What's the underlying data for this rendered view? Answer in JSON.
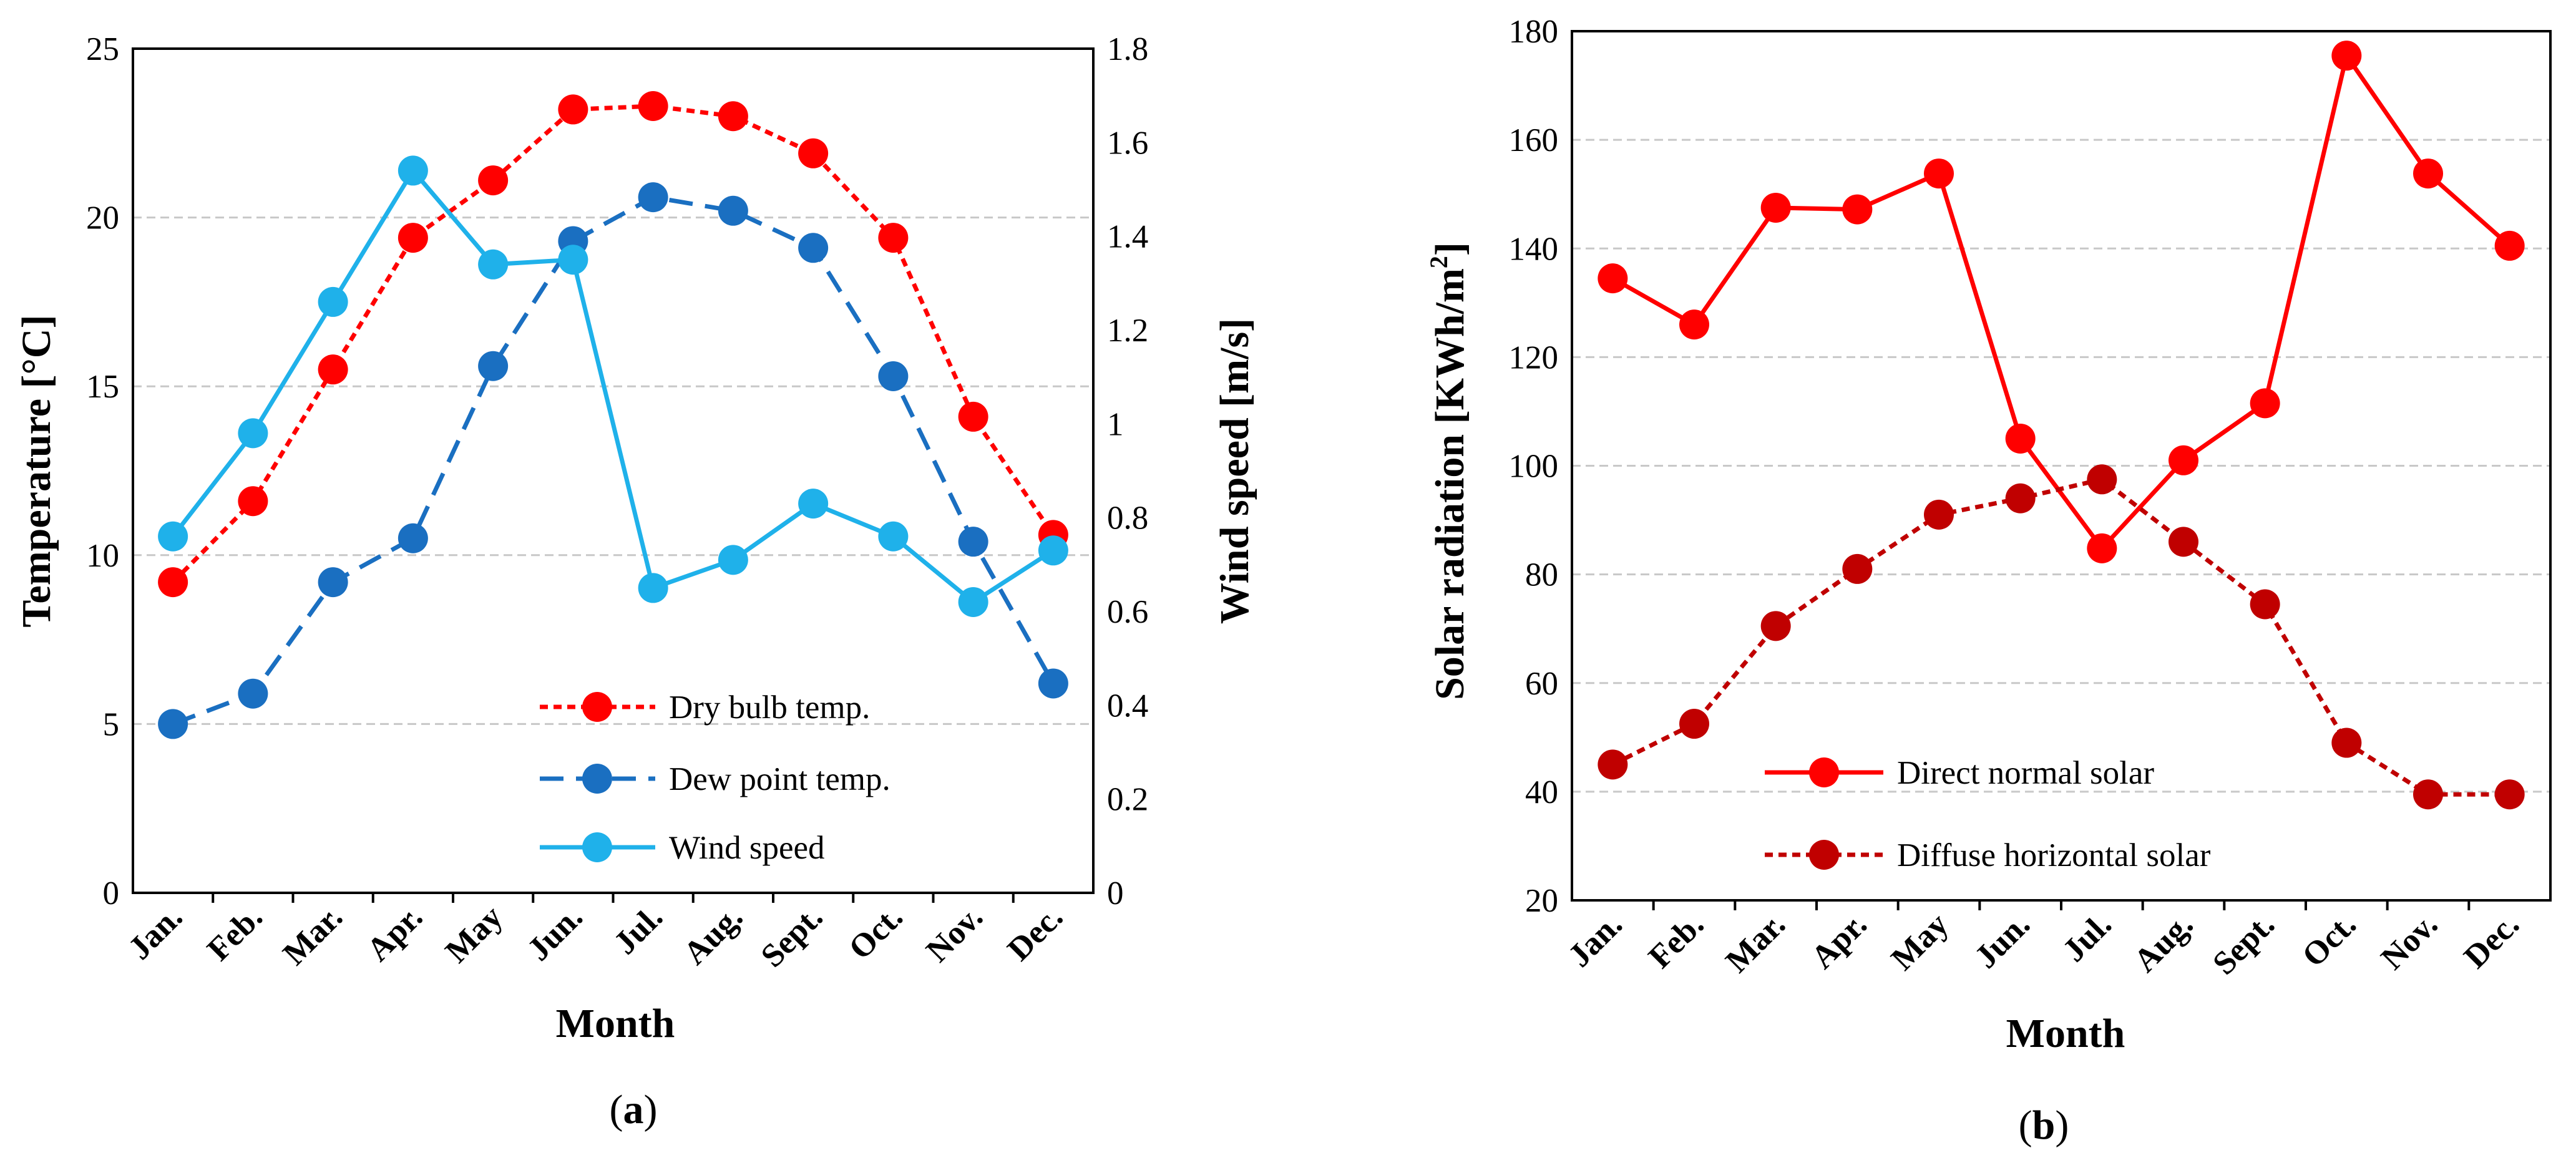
{
  "chart_data": [
    {
      "type": "line",
      "panel_label": "a",
      "categories": [
        "Jan.",
        "Feb.",
        "Mar.",
        "Apr.",
        "May",
        "Jun.",
        "Jul.",
        "Aug.",
        "Sept.",
        "Oct.",
        "Nov.",
        "Dec."
      ],
      "xlabel": "Month",
      "ylabel": "Temperature [°C]",
      "ylim": [
        0,
        25
      ],
      "yticks": [
        0,
        5,
        10,
        15,
        20,
        25
      ],
      "y2label": "Wind speed [m/s]",
      "y2lim": [
        0,
        1.8
      ],
      "y2ticks": [
        "0",
        "0.2",
        "0.4",
        "0.6",
        "0.8",
        "1",
        "1.2",
        "1.4",
        "1.6",
        "1.8"
      ],
      "grid": true,
      "legend_position": "bottom-right",
      "series": [
        {
          "name": "Dry bulb temp.",
          "axis": "left",
          "style": "dotted",
          "color": "#ff0000",
          "values": [
            9.2,
            11.6,
            15.5,
            19.4,
            21.1,
            23.2,
            23.3,
            23.0,
            21.9,
            19.4,
            14.1,
            10.6
          ]
        },
        {
          "name": "Dew point temp.",
          "axis": "left",
          "style": "dashed",
          "color": "#1a6fc1",
          "values": [
            5.0,
            5.9,
            9.2,
            10.5,
            15.6,
            19.3,
            20.6,
            20.2,
            19.1,
            15.3,
            10.4,
            6.2
          ]
        },
        {
          "name": "Wind speed",
          "axis": "right",
          "style": "solid",
          "color": "#1fb1ea",
          "values": [
            0.76,
            0.98,
            1.26,
            1.54,
            1.34,
            1.35,
            0.65,
            0.71,
            0.83,
            0.76,
            0.62,
            0.73
          ]
        }
      ]
    },
    {
      "type": "line",
      "panel_label": "b",
      "categories": [
        "Jan.",
        "Feb.",
        "Mar.",
        "Apr.",
        "May",
        "Jun.",
        "Jul.",
        "Aug.",
        "Sept.",
        "Oct.",
        "Nov.",
        "Dec."
      ],
      "xlabel": "Month",
      "ylabel_main": "Solar radiation [KWh/m",
      "ylabel_sup": "2",
      "ylabel_end": "]",
      "ylim": [
        20,
        180
      ],
      "yticks": [
        20,
        40,
        60,
        80,
        100,
        120,
        140,
        160,
        180
      ],
      "grid": true,
      "legend_position": "bottom-left",
      "series": [
        {
          "name": "Direct normal solar",
          "style": "solid",
          "color": "#ff0000",
          "values": [
            134.5,
            126.0,
            147.5,
            147.2,
            153.8,
            105.0,
            84.8,
            101.0,
            111.5,
            175.5,
            153.8,
            140.5
          ]
        },
        {
          "name": "Diffuse horizontal solar",
          "style": "dotted",
          "color": "#c00000",
          "values": [
            45.0,
            52.5,
            70.5,
            81.0,
            91.0,
            94.0,
            97.5,
            86.0,
            74.5,
            49.0,
            39.5,
            39.5
          ]
        }
      ]
    }
  ]
}
